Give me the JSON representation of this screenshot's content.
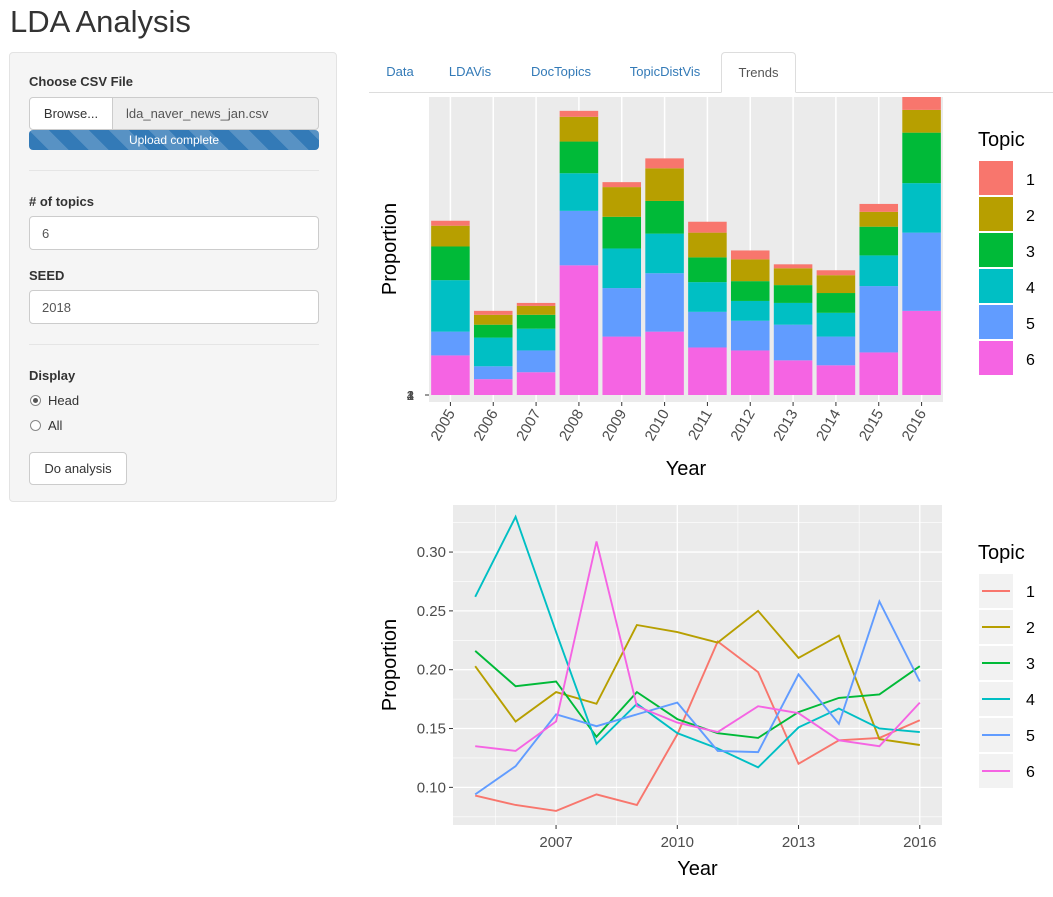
{
  "app": {
    "title": "LDA Analysis"
  },
  "sidebar": {
    "file_label": "Choose CSV File",
    "browse_label": "Browse...",
    "file_name": "lda_naver_news_jan.csv",
    "upload_status": "Upload complete",
    "topics_label": "# of topics",
    "topics_value": "6",
    "seed_label": "SEED",
    "seed_value": "2018",
    "display_label": "Display",
    "display_options": [
      "Head",
      "All"
    ],
    "display_selected": "Head",
    "analyze_label": "Do analysis"
  },
  "tabs": [
    {
      "label": "Data",
      "active": false
    },
    {
      "label": "LDAVis",
      "active": false
    },
    {
      "label": "DocTopics",
      "active": false
    },
    {
      "label": "TopicDistVis",
      "active": false
    },
    {
      "label": "Trends",
      "active": true
    }
  ],
  "colors": {
    "1": "#F8766D",
    "2": "#B79F00",
    "3": "#00BA38",
    "4": "#00BFC4",
    "5": "#619CFF",
    "6": "#F564E3"
  },
  "chart_data": [
    {
      "type": "bar",
      "stacked": true,
      "xlabel": "Year",
      "ylabel": "Proportion",
      "legend_title": "Topic",
      "legend_position": "right",
      "categories": [
        "2005",
        "2006",
        "2007",
        "2008",
        "2009",
        "2010",
        "2011",
        "2012",
        "2013",
        "2014",
        "2015",
        "2016"
      ],
      "y_tick_labels_overlapping": [
        "1",
        "2",
        "3",
        "4"
      ],
      "series": [
        {
          "name": "1",
          "values": [
            5,
            4,
            3,
            6,
            5,
            10,
            11,
            9,
            4,
            5,
            8,
            13
          ]
        },
        {
          "name": "2",
          "values": [
            21,
            10,
            9,
            25,
            30,
            33,
            25,
            22,
            17,
            18,
            15,
            23
          ]
        },
        {
          "name": "3",
          "values": [
            34,
            13,
            14,
            32,
            32,
            33,
            25,
            20,
            18,
            20,
            29,
            51
          ]
        },
        {
          "name": "4",
          "values": [
            52,
            29,
            22,
            38,
            40,
            40,
            30,
            20,
            22,
            24,
            31,
            50
          ]
        },
        {
          "name": "5",
          "values": [
            24,
            13,
            22,
            55,
            49,
            59,
            36,
            30,
            36,
            29,
            67,
            79
          ]
        },
        {
          "name": "6",
          "values": [
            40,
            16,
            23,
            131,
            59,
            64,
            48,
            45,
            35,
            30,
            43,
            85
          ]
        }
      ]
    },
    {
      "type": "line",
      "xlabel": "Year",
      "ylabel": "Proportion",
      "legend_title": "Topic",
      "legend_position": "right",
      "grid": true,
      "x": [
        2005,
        2006,
        2007,
        2008,
        2009,
        2010,
        2011,
        2012,
        2013,
        2014,
        2015,
        2016
      ],
      "xlim": [
        2004.45,
        2016.55
      ],
      "ylim": [
        0.068,
        0.34
      ],
      "xticks": [
        2007,
        2010,
        2013,
        2016
      ],
      "yticks": [
        0.1,
        0.15,
        0.2,
        0.25,
        0.3
      ],
      "series": [
        {
          "name": "1",
          "values": [
            0.093,
            0.085,
            0.08,
            0.094,
            0.085,
            0.145,
            0.224,
            0.198,
            0.12,
            0.14,
            0.142,
            0.157
          ]
        },
        {
          "name": "2",
          "values": [
            0.203,
            0.156,
            0.181,
            0.171,
            0.238,
            0.232,
            0.223,
            0.25,
            0.21,
            0.229,
            0.141,
            0.136
          ]
        },
        {
          "name": "3",
          "values": [
            0.216,
            0.186,
            0.19,
            0.143,
            0.181,
            0.158,
            0.146,
            0.142,
            0.164,
            0.176,
            0.179,
            0.203
          ]
        },
        {
          "name": "4",
          "values": [
            0.262,
            0.33,
            0.232,
            0.137,
            0.171,
            0.146,
            0.133,
            0.117,
            0.151,
            0.167,
            0.15,
            0.147
          ]
        },
        {
          "name": "5",
          "values": [
            0.094,
            0.118,
            0.162,
            0.152,
            0.162,
            0.172,
            0.131,
            0.13,
            0.196,
            0.154,
            0.258,
            0.19
          ]
        },
        {
          "name": "6",
          "values": [
            0.135,
            0.131,
            0.156,
            0.309,
            0.169,
            0.155,
            0.147,
            0.169,
            0.163,
            0.14,
            0.135,
            0.172
          ]
        }
      ]
    }
  ]
}
